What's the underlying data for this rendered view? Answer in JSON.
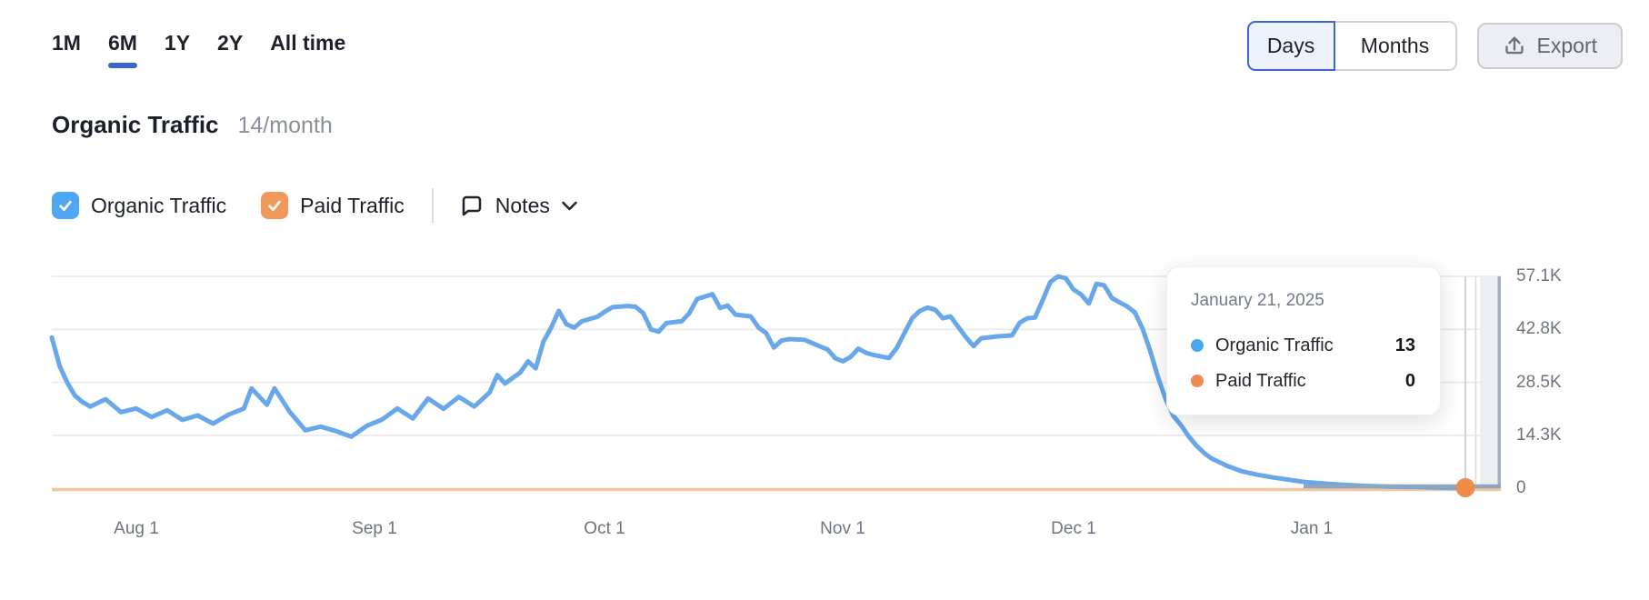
{
  "tabs": {
    "items": [
      {
        "label": "1M",
        "selected": false
      },
      {
        "label": "6M",
        "selected": true
      },
      {
        "label": "1Y",
        "selected": false
      },
      {
        "label": "2Y",
        "selected": false
      },
      {
        "label": "All time",
        "selected": false
      }
    ]
  },
  "view_toggle": {
    "options": [
      "Days",
      "Months"
    ],
    "selected": "Days"
  },
  "export": {
    "label": "Export"
  },
  "header": {
    "title": "Organic Traffic",
    "subtitle": "14/month"
  },
  "legend": {
    "organic": {
      "label": "Organic Traffic",
      "checked": true,
      "color": "#4fa6f2"
    },
    "paid": {
      "label": "Paid Traffic",
      "checked": true,
      "color": "#f0975a"
    },
    "notes_label": "Notes"
  },
  "tooltip": {
    "date": "January 21, 2025",
    "rows": [
      {
        "label": "Organic Traffic",
        "value": "13",
        "color": "#4aa5f3"
      },
      {
        "label": "Paid Traffic",
        "value": "0",
        "color": "#ee8c4f"
      }
    ]
  },
  "colors": {
    "organic_line": "#68a7ea",
    "paid_line": "#f1c7a3",
    "hover_marker": "#ee8c4a",
    "accent_blue": "#3a67cc",
    "gridline": "#e9e9eb",
    "axis_text": "#6d7380"
  },
  "chart_data": {
    "type": "line",
    "title": "Organic Traffic",
    "x_axis": {
      "start_date": "2024-07-21",
      "end_date": "2025-01-21",
      "ticks": [
        {
          "label": "Aug 1",
          "day": 11
        },
        {
          "label": "Sep 1",
          "day": 42
        },
        {
          "label": "Oct 1",
          "day": 72
        },
        {
          "label": "Nov 1",
          "day": 103
        },
        {
          "label": "Dec 1",
          "day": 133
        },
        {
          "label": "Jan 1",
          "day": 164
        }
      ]
    },
    "y_axis": {
      "min": 0,
      "max": 57100,
      "grid": true,
      "ticks": [
        {
          "label": "57.1K",
          "value": 57100
        },
        {
          "label": "42.8K",
          "value": 42825
        },
        {
          "label": "28.5K",
          "value": 28550
        },
        {
          "label": "14.3K",
          "value": 14275
        },
        {
          "label": "0",
          "value": 0
        }
      ]
    },
    "hovered_point": {
      "date": "January 21, 2025",
      "organic": 13,
      "paid": 0
    },
    "series": [
      {
        "name": "Organic Traffic",
        "color": "#68a7ea",
        "points_day_value": [
          [
            0,
            40600
          ],
          [
            1,
            33000
          ],
          [
            2,
            28500
          ],
          [
            3,
            25000
          ],
          [
            4,
            23200
          ],
          [
            5,
            22000
          ],
          [
            7,
            24000
          ],
          [
            9,
            20500
          ],
          [
            11,
            21500
          ],
          [
            13,
            19200
          ],
          [
            15,
            21000
          ],
          [
            17,
            18400
          ],
          [
            19,
            19600
          ],
          [
            21,
            17400
          ],
          [
            23,
            19800
          ],
          [
            25,
            21500
          ],
          [
            26,
            26900
          ],
          [
            28,
            22500
          ],
          [
            29,
            26900
          ],
          [
            31,
            20500
          ],
          [
            33,
            15600
          ],
          [
            35,
            16600
          ],
          [
            37,
            15400
          ],
          [
            39,
            13900
          ],
          [
            41,
            16800
          ],
          [
            43,
            18500
          ],
          [
            45,
            21500
          ],
          [
            47,
            18800
          ],
          [
            49,
            24200
          ],
          [
            51,
            21400
          ],
          [
            53,
            24600
          ],
          [
            55,
            22000
          ],
          [
            57,
            25800
          ],
          [
            58,
            30500
          ],
          [
            59,
            28200
          ],
          [
            61,
            31200
          ],
          [
            62,
            34200
          ],
          [
            63,
            32300
          ],
          [
            64,
            39500
          ],
          [
            65,
            43300
          ],
          [
            66,
            47800
          ],
          [
            67,
            44200
          ],
          [
            68,
            43300
          ],
          [
            69,
            45000
          ],
          [
            71,
            46200
          ],
          [
            72,
            47600
          ],
          [
            73,
            48800
          ],
          [
            75,
            49100
          ],
          [
            76,
            48900
          ],
          [
            77,
            47200
          ],
          [
            78,
            42800
          ],
          [
            79,
            42200
          ],
          [
            80,
            44500
          ],
          [
            82,
            45000
          ],
          [
            83,
            47200
          ],
          [
            84,
            51000
          ],
          [
            86,
            52300
          ],
          [
            87,
            48600
          ],
          [
            88,
            49200
          ],
          [
            89,
            46800
          ],
          [
            91,
            46300
          ],
          [
            92,
            43300
          ],
          [
            93,
            41800
          ],
          [
            94,
            37900
          ],
          [
            95,
            39800
          ],
          [
            96,
            40200
          ],
          [
            98,
            40000
          ],
          [
            100,
            38200
          ],
          [
            101,
            37400
          ],
          [
            102,
            35000
          ],
          [
            103,
            34200
          ],
          [
            104,
            35400
          ],
          [
            105,
            37600
          ],
          [
            106,
            36500
          ],
          [
            107,
            35900
          ],
          [
            109,
            35100
          ],
          [
            110,
            37800
          ],
          [
            111,
            41800
          ],
          [
            112,
            45800
          ],
          [
            113,
            47800
          ],
          [
            114,
            48700
          ],
          [
            115,
            48100
          ],
          [
            116,
            45800
          ],
          [
            117,
            46300
          ],
          [
            118,
            43500
          ],
          [
            119,
            40700
          ],
          [
            120,
            38300
          ],
          [
            121,
            40400
          ],
          [
            123,
            40900
          ],
          [
            125,
            41200
          ],
          [
            126,
            44600
          ],
          [
            127,
            45800
          ],
          [
            128,
            46000
          ],
          [
            129,
            50700
          ],
          [
            130,
            55600
          ],
          [
            131,
            57100
          ],
          [
            132,
            56600
          ],
          [
            133,
            53600
          ],
          [
            134,
            52200
          ],
          [
            135,
            49800
          ],
          [
            136,
            55100
          ],
          [
            137,
            54700
          ],
          [
            138,
            51300
          ],
          [
            139,
            50100
          ],
          [
            140,
            49000
          ],
          [
            141,
            47400
          ],
          [
            142,
            43000
          ],
          [
            143,
            37000
          ],
          [
            144,
            30000
          ],
          [
            145,
            24000
          ],
          [
            146,
            19500
          ],
          [
            147,
            17000
          ],
          [
            148,
            14000
          ],
          [
            149,
            11500
          ],
          [
            150,
            9500
          ],
          [
            151,
            8000
          ],
          [
            152,
            7000
          ],
          [
            153,
            6000
          ],
          [
            155,
            4500
          ],
          [
            157,
            3600
          ],
          [
            159,
            2900
          ],
          [
            161,
            2300
          ],
          [
            163,
            1700
          ],
          [
            166,
            1200
          ],
          [
            168,
            900
          ],
          [
            170,
            700
          ],
          [
            172,
            550
          ],
          [
            174,
            450
          ],
          [
            176,
            350
          ],
          [
            178,
            300
          ],
          [
            180,
            200
          ],
          [
            182,
            100
          ],
          [
            184,
            13
          ]
        ]
      },
      {
        "name": "Paid Traffic",
        "color": "#f1c7a3",
        "constant_value": 0
      }
    ]
  }
}
